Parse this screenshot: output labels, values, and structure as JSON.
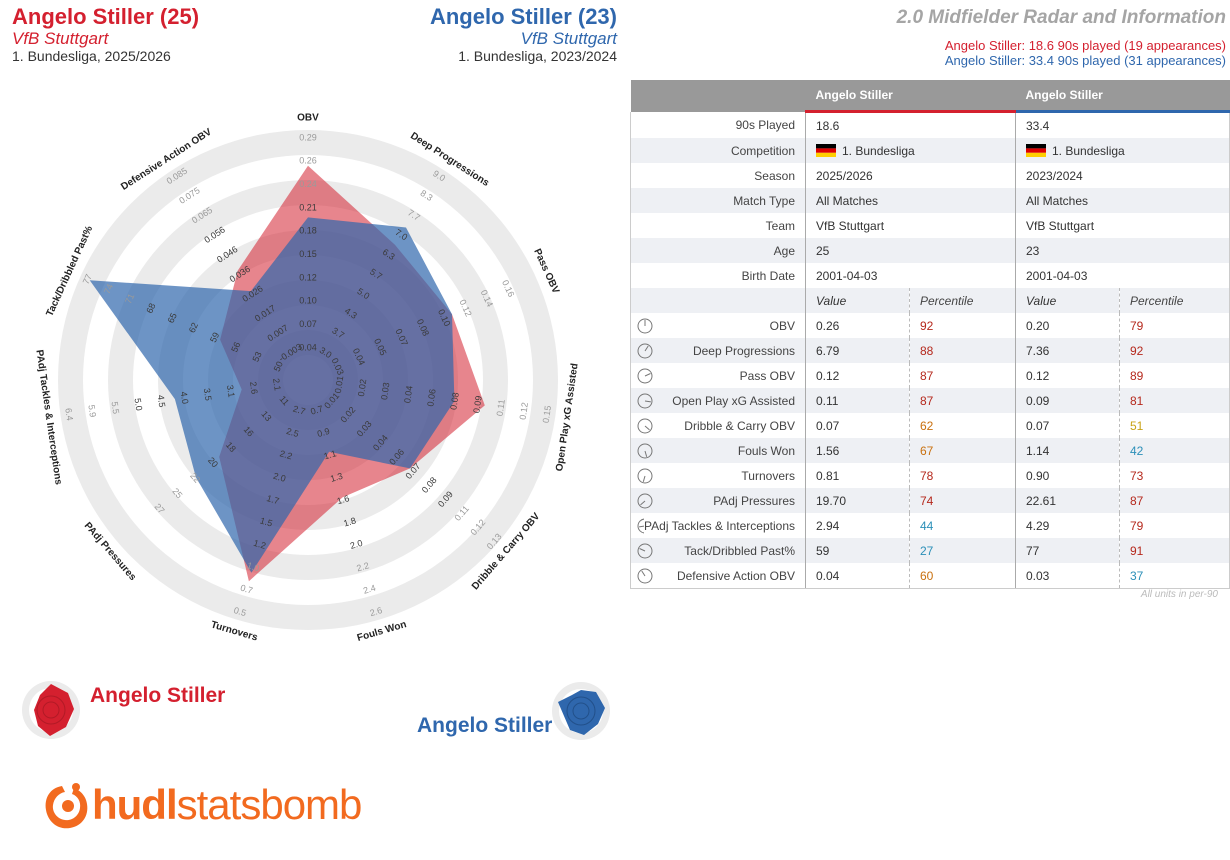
{
  "header": {
    "player1": {
      "name": "Angelo Stiller (25)",
      "team": "VfB Stuttgart",
      "competition": "1. Bundesliga, 2025/2026"
    },
    "player2": {
      "name": "Angelo Stiller (23)",
      "team": "VfB Stuttgart",
      "competition": "1. Bundesliga, 2023/2024"
    },
    "title": "2.0 Midfielder Radar and Information",
    "played1": "Angelo Stiller: 18.6 90s played (19 appearances)",
    "played2": "Angelo Stiller: 33.4 90s played (31 appearances)"
  },
  "colors": {
    "player1": "#d4202f",
    "player2": "#2f67ad",
    "ring": "#ebebeb",
    "pct_dark_red": "#b5281c",
    "pct_orange": "#c9700e",
    "pct_yellow": "#c8a214",
    "pct_blue": "#2b8fb8"
  },
  "chart_data": {
    "type": "radar",
    "axes": [
      {
        "name": "OBV",
        "ticks": [
          "0.04",
          "0.07",
          "0.10",
          "0.12",
          "0.15",
          "0.18",
          "0.21",
          "0.24",
          "0.26",
          "0.29"
        ],
        "p1": 0.26,
        "p2": 0.2
      },
      {
        "name": "Deep Progressions",
        "ticks": [
          "3.0",
          "3.7",
          "4.3",
          "5.0",
          "5.7",
          "6.3",
          "7.0",
          "7.7",
          "8.3",
          "9.0"
        ],
        "p1": 6.79,
        "p2": 7.36
      },
      {
        "name": "Pass OBV",
        "ticks": [
          "0.03",
          "0.04",
          "0.05",
          "0.07",
          "0.08",
          "0.10",
          "0.12",
          "0.14",
          "0.16"
        ],
        "p1": 0.12,
        "p2": 0.12
      },
      {
        "name": "Open Play xG Assisted",
        "ticks": [
          "0.01",
          "0.02",
          "0.03",
          "0.04",
          "0.06",
          "0.08",
          "0.09",
          "0.11",
          "0.12",
          "0.15"
        ],
        "p1": 0.11,
        "p2": 0.09
      },
      {
        "name": "Dribble & Carry OBV",
        "ticks": [
          "0.01",
          "0.02",
          "0.03",
          "0.04",
          "0.06",
          "0.07",
          "0.08",
          "0.09",
          "0.11",
          "0.12",
          "0.13"
        ],
        "p1": 0.07,
        "p2": 0.07
      },
      {
        "name": "Fouls Won",
        "ticks": [
          "0.7",
          "0.9",
          "1.1",
          "1.3",
          "1.6",
          "1.8",
          "2.0",
          "2.2",
          "2.4",
          "2.6"
        ],
        "p1": 1.56,
        "p2": 1.14
      },
      {
        "name": "Turnovers",
        "ticks": [
          "2.7",
          "2.5",
          "2.2",
          "2.0",
          "1.7",
          "1.5",
          "1.2",
          "1.0",
          "0.7",
          "0.5"
        ],
        "p1": 0.81,
        "p2": 0.9
      },
      {
        "name": "PAdj Pressures",
        "ticks": [
          "11",
          "13",
          "16",
          "18",
          "20",
          "22",
          "25",
          "27"
        ],
        "p1": 19.7,
        "p2": 22.61
      },
      {
        "name": "PAdj Tackles & Interceptions",
        "ticks": [
          "2.1",
          "2.6",
          "3.1",
          "3.5",
          "4.0",
          "4.5",
          "5.0",
          "5.5",
          "5.9",
          "6.4"
        ],
        "p1": 2.94,
        "p2": 4.29
      },
      {
        "name": "Tack/Dribbled Past%",
        "ticks": [
          "50",
          "53",
          "56",
          "59",
          "62",
          "65",
          "68",
          "71",
          "74",
          "77"
        ],
        "p1": 59,
        "p2": 77
      },
      {
        "name": "Defensive Action OBV",
        "ticks": [
          "-0.003",
          "0.007",
          "0.017",
          "0.026",
          "0.036",
          "0.046",
          "0.056",
          "0.065",
          "0.075",
          "0.085"
        ],
        "p1": 0.04,
        "p2": 0.03
      }
    ],
    "series": [
      {
        "name": "Angelo Stiller",
        "player": "player1"
      },
      {
        "name": "Angelo Stiller",
        "player": "player2"
      }
    ]
  },
  "table": {
    "head": {
      "p1": "Angelo Stiller",
      "p2": "Angelo Stiller"
    },
    "info_rows": [
      {
        "label": "90s Played",
        "p1": "18.6",
        "p2": "33.4"
      },
      {
        "label": "Competition",
        "p1": "1. Bundesliga",
        "p2": "1. Bundesliga",
        "flag": true
      },
      {
        "label": "Season",
        "p1": "2025/2026",
        "p2": "2023/2024"
      },
      {
        "label": "Match Type",
        "p1": "All Matches",
        "p2": "All Matches"
      },
      {
        "label": "Team",
        "p1": "VfB Stuttgart",
        "p2": "VfB Stuttgart"
      },
      {
        "label": "Age",
        "p1": "25",
        "p2": "23"
      },
      {
        "label": "Birth Date",
        "p1": "2001-04-03",
        "p2": "2001-04-03"
      }
    ],
    "sub_head": {
      "value": "Value",
      "percentile": "Percentile"
    },
    "metric_rows": [
      {
        "label": "OBV",
        "v1": "0.26",
        "p1": "92",
        "c1": "pct_dark_red",
        "v2": "0.20",
        "p2": "79",
        "c2": "pct_dark_red"
      },
      {
        "label": "Deep Progressions",
        "v1": "6.79",
        "p1": "88",
        "c1": "pct_dark_red",
        "v2": "7.36",
        "p2": "92",
        "c2": "pct_dark_red"
      },
      {
        "label": "Pass OBV",
        "v1": "0.12",
        "p1": "87",
        "c1": "pct_dark_red",
        "v2": "0.12",
        "p2": "89",
        "c2": "pct_dark_red"
      },
      {
        "label": "Open Play xG Assisted",
        "v1": "0.11",
        "p1": "87",
        "c1": "pct_dark_red",
        "v2": "0.09",
        "p2": "81",
        "c2": "pct_dark_red"
      },
      {
        "label": "Dribble & Carry OBV",
        "v1": "0.07",
        "p1": "62",
        "c1": "pct_orange",
        "v2": "0.07",
        "p2": "51",
        "c2": "pct_yellow"
      },
      {
        "label": "Fouls Won",
        "v1": "1.56",
        "p1": "67",
        "c1": "pct_orange",
        "v2": "1.14",
        "p2": "42",
        "c2": "pct_blue"
      },
      {
        "label": "Turnovers",
        "v1": "0.81",
        "p1": "78",
        "c1": "pct_dark_red",
        "v2": "0.90",
        "p2": "73",
        "c2": "pct_dark_red"
      },
      {
        "label": "PAdj Pressures",
        "v1": "19.70",
        "p1": "74",
        "c1": "pct_dark_red",
        "v2": "22.61",
        "p2": "87",
        "c2": "pct_dark_red"
      },
      {
        "label": "PAdj Tackles & Interceptions",
        "v1": "2.94",
        "p1": "44",
        "c1": "pct_blue",
        "v2": "4.29",
        "p2": "79",
        "c2": "pct_dark_red"
      },
      {
        "label": "Tack/Dribbled Past%",
        "v1": "59",
        "p1": "27",
        "c1": "pct_blue",
        "v2": "77",
        "p2": "91",
        "c2": "pct_dark_red"
      },
      {
        "label": "Defensive Action OBV",
        "v1": "0.04",
        "p1": "60",
        "c1": "pct_orange",
        "v2": "0.03",
        "p2": "37",
        "c2": "pct_blue"
      }
    ],
    "footnote": "All units in per-90"
  },
  "legend": {
    "p1": "Angelo Stiller",
    "p2": "Angelo Stiller"
  },
  "logo": {
    "part1": "hudl",
    "part2": "statsbomb"
  }
}
